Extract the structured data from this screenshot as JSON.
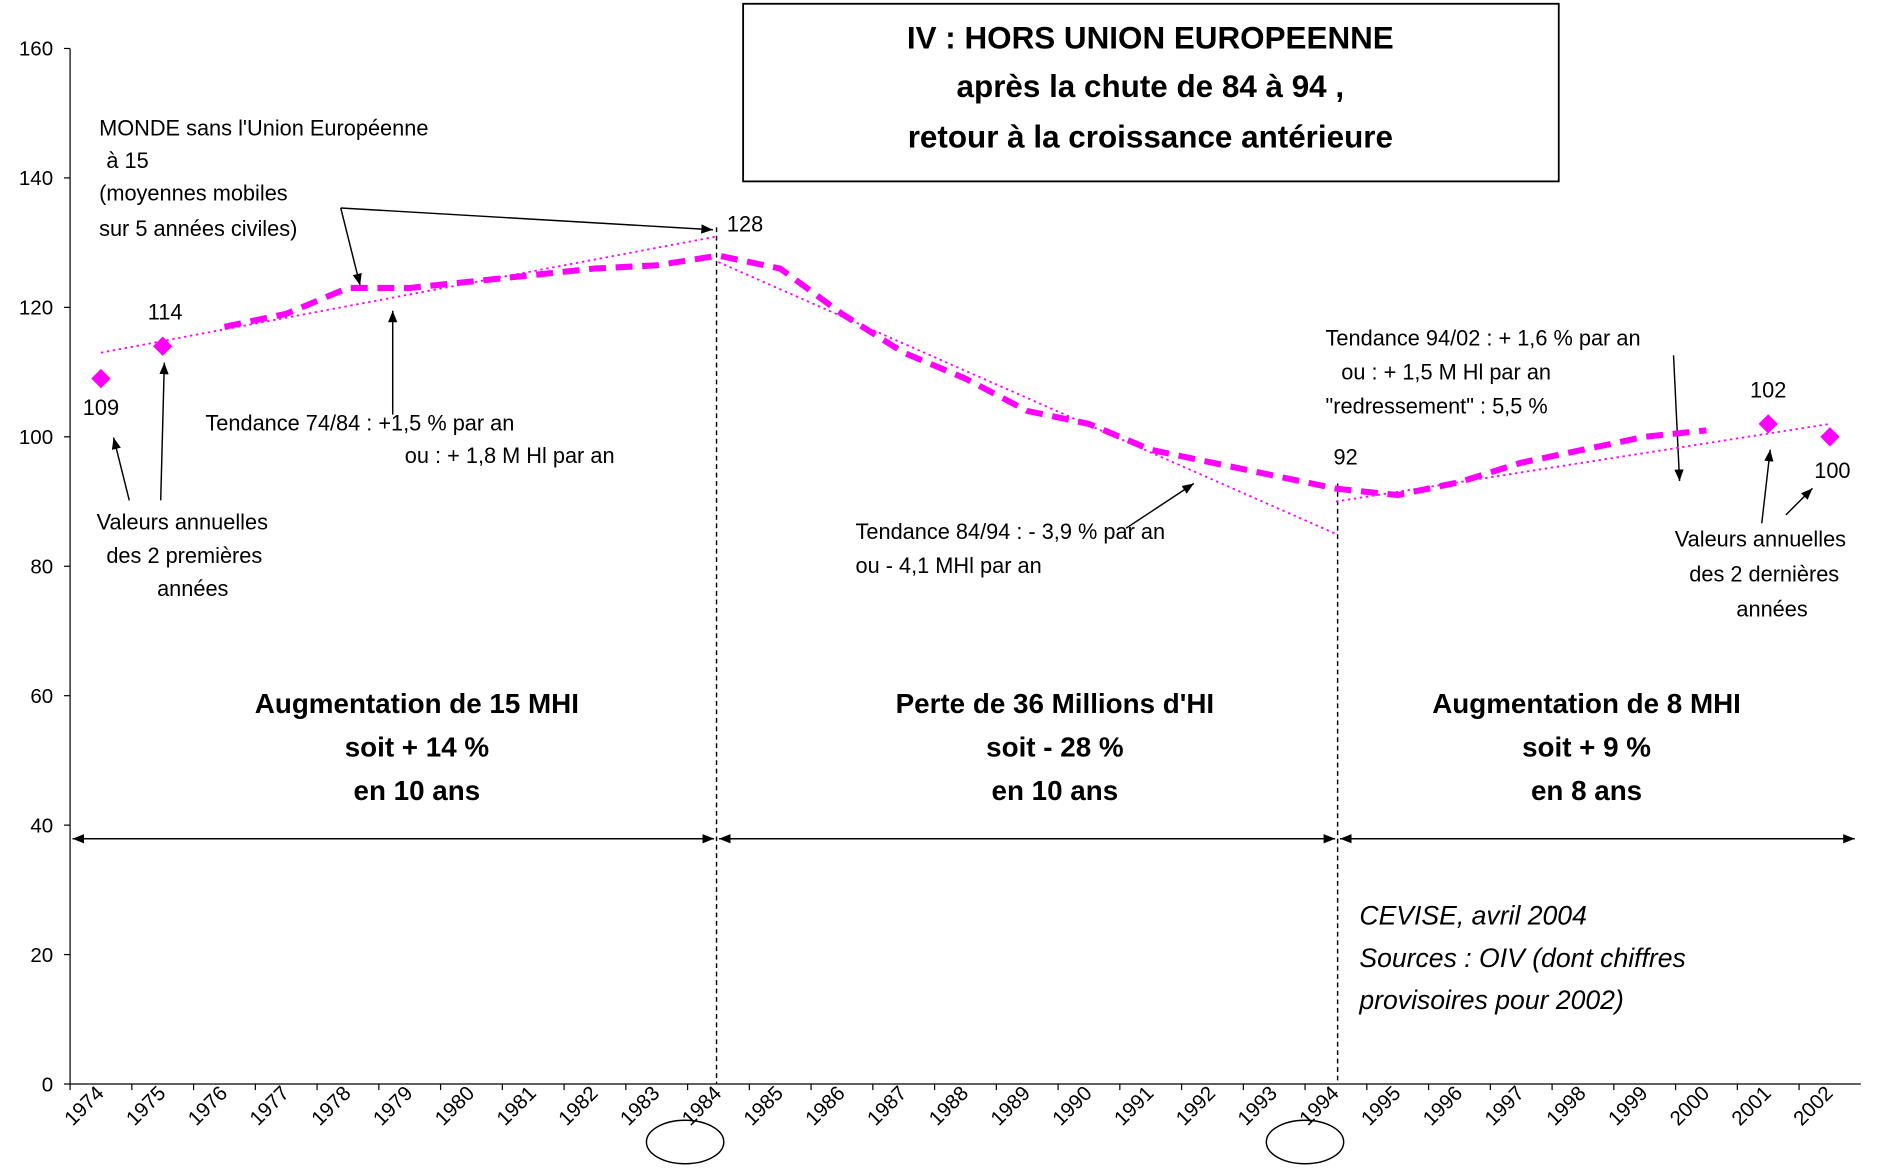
{
  "chart_data": {
    "type": "line",
    "title": [
      "IV : HORS UNION EUROPEENNE",
      "après la chute de 84 à 94 ,",
      "retour à la croissance antérieure"
    ],
    "categories": [
      "1974",
      "1975",
      "1976",
      "1977",
      "1978",
      "1979",
      "1980",
      "1981",
      "1982",
      "1983",
      "1984",
      "1985",
      "1986",
      "1987",
      "1988",
      "1989",
      "1990",
      "1991",
      "1992",
      "1993",
      "1994",
      "1995",
      "1996",
      "1997",
      "1998",
      "1999",
      "2000",
      "2001",
      "2002"
    ],
    "ylim": [
      0,
      160
    ],
    "yticks": [
      0,
      20,
      40,
      60,
      80,
      100,
      120,
      140,
      160
    ],
    "color": "#ff00ff",
    "series": [
      {
        "style": "markers",
        "values": [
          109,
          114,
          null,
          null,
          null,
          null,
          null,
          null,
          null,
          null,
          null,
          null,
          null,
          null,
          null,
          null,
          null,
          null,
          null,
          null,
          null,
          null,
          null,
          null,
          null,
          null,
          null,
          102,
          100
        ]
      },
      {
        "style": "dashed",
        "values": [
          null,
          null,
          117,
          119,
          123,
          123,
          124,
          125,
          126,
          126.5,
          128,
          126,
          119,
          113,
          109,
          104,
          102,
          98,
          96,
          94,
          92,
          91,
          93,
          96,
          98,
          100,
          101,
          null,
          null
        ]
      },
      {
        "style": "dotted",
        "x": [
          1974,
          1984
        ],
        "values": [
          113,
          131
        ]
      },
      {
        "style": "dotted",
        "x": [
          1984,
          1994
        ],
        "values": [
          127,
          85
        ]
      },
      {
        "style": "dotted",
        "x": [
          1994,
          2002
        ],
        "values": [
          90,
          102
        ]
      }
    ],
    "annotations": [
      "MONDE sans l'Union Européenne",
      " à 15",
      "(moyennes mobiles",
      "sur 5 années civiles)",
      "Tendance 74/84 : +1,5 % par an",
      "ou : + 1,8 M Hl par an",
      "Valeurs annuelles",
      "des 2 premières",
      "années",
      "Tendance 84/94 : - 3,9 % par an",
      "ou - 4,1  MHl par an",
      "Tendance 94/02 : + 1,6 % par an",
      "ou : + 1,5 M Hl par an",
      "\"redressement\" :   5,5 %",
      "Valeurs annuelles",
      "des 2 dernières",
      "années"
    ],
    "periods": [
      [
        "Augmentation de 15 MHI",
        "soit + 14 %",
        "en 10 ans"
      ],
      [
        "Perte de 36 Millions d'HI",
        "soit - 28 %",
        "en 10 ans"
      ],
      [
        "Augmentation de 8 MHI",
        "soit + 9 %",
        "en 8 ans"
      ]
    ],
    "source": [
      "CEVISE, avril 2004",
      "Sources : OIV (dont chiffres",
      "provisoires pour 2002)"
    ]
  }
}
